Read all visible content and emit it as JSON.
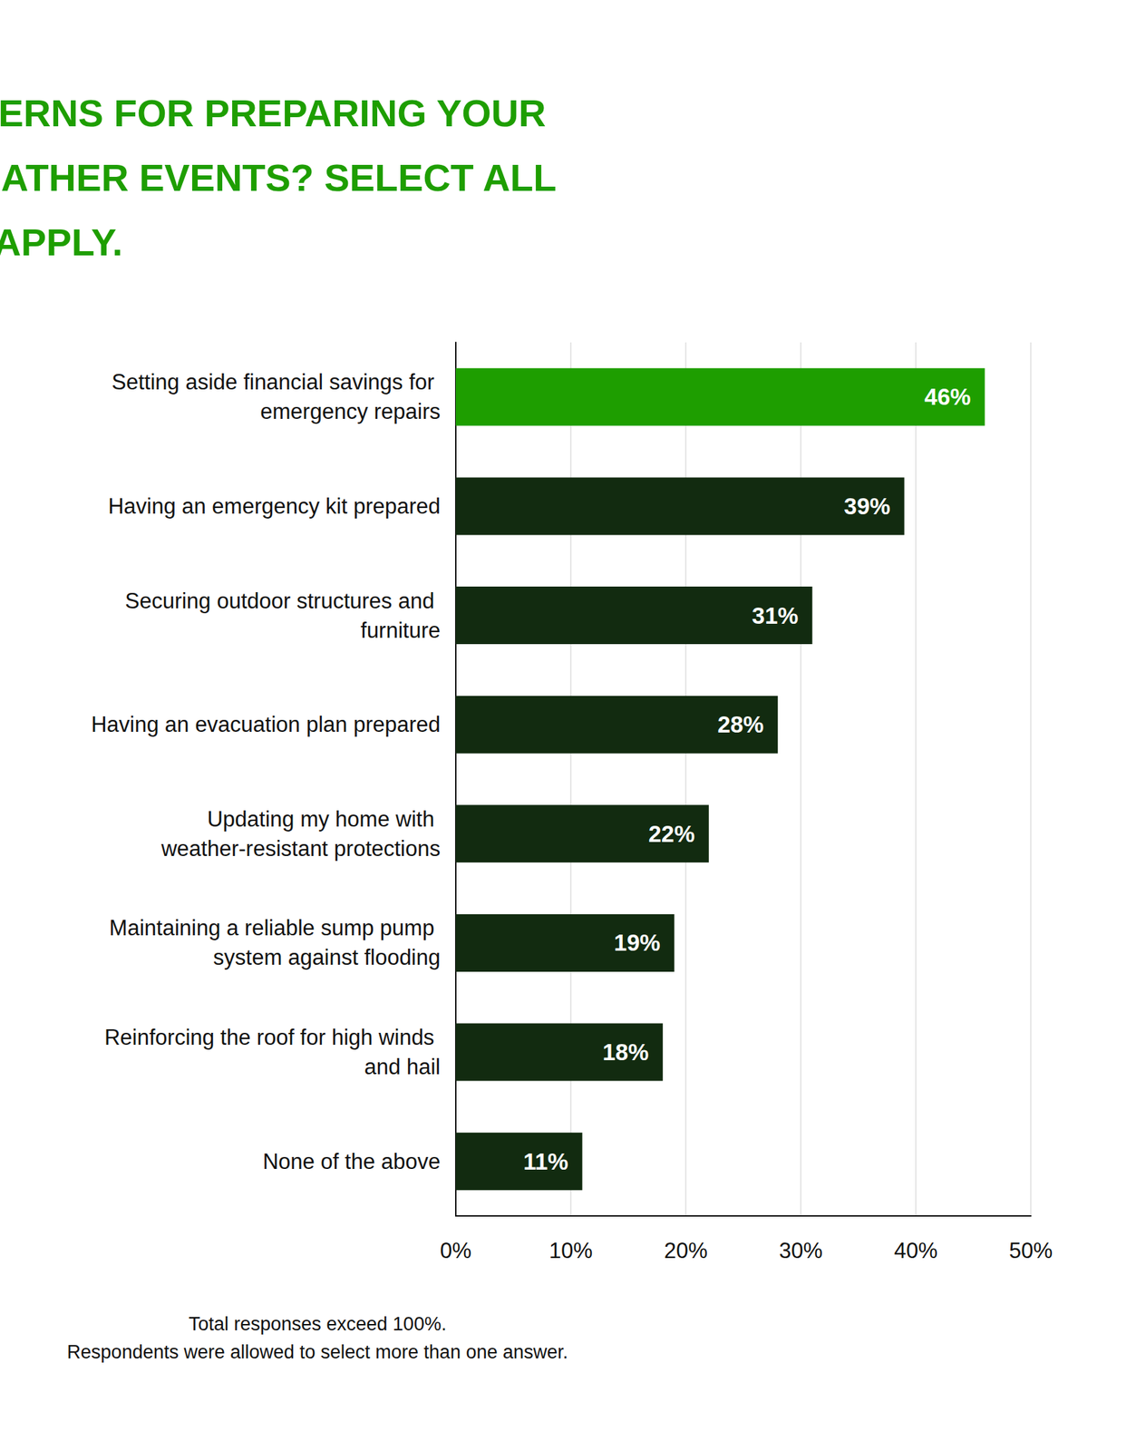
{
  "chart_data": {
    "type": "bar",
    "orientation": "horizontal",
    "title": "WHICH ARE YOUR TOP CONCERNS FOR PREPARING YOUR HOME AGAINST EXTREME WEATHER EVENTS? SELECT ALL THAT APPLY.",
    "annotations": [
      "Total responses exceed 100%.",
      "Respondents were allowed to select more than one answer."
    ],
    "categories": [
      "Setting aside financial savings for emergency repairs",
      "Having an emergency kit prepared",
      "Securing outdoor structures and furniture",
      "Having an evacuation plan prepared",
      "Updating my home with weather-resistant protections",
      "Maintaining a reliable sump pump system against flooding",
      "Reinforcing the roof for high winds and hail",
      "None of the above"
    ],
    "values": [
      46,
      39,
      31,
      28,
      22,
      19,
      18,
      11
    ],
    "value_labels": [
      "46%",
      "39%",
      "31%",
      "28%",
      "22%",
      "19%",
      "18%",
      "11%"
    ],
    "colors": [
      "#1e9e00",
      "#122b10",
      "#122b10",
      "#122b10",
      "#122b10",
      "#122b10",
      "#122b10",
      "#122b10"
    ],
    "xlim": [
      0,
      50
    ],
    "xticks": [
      {
        "value": 0,
        "label": "0%"
      },
      {
        "value": 10,
        "label": "10%"
      },
      {
        "value": 20,
        "label": "20%"
      },
      {
        "value": 30,
        "label": "30%"
      },
      {
        "value": 40,
        "label": "40%"
      },
      {
        "value": 50,
        "label": "50%"
      }
    ],
    "data_labels": true,
    "grid": true
  }
}
